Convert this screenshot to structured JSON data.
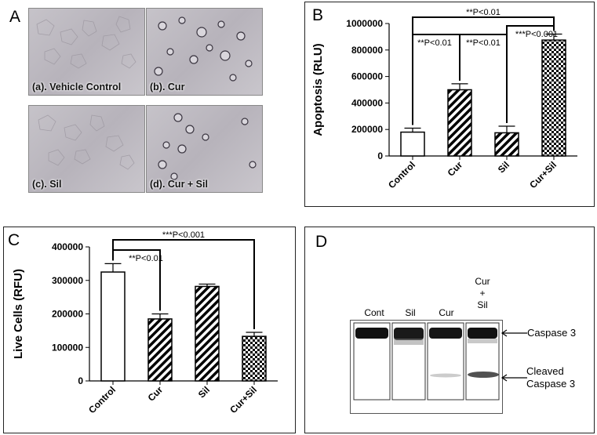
{
  "panel_a": {
    "letter": "A",
    "tiles": [
      {
        "caption": "(a). Vehicle Control"
      },
      {
        "caption": "(b). Cur"
      },
      {
        "caption": "(c). Sil"
      },
      {
        "caption": "(d). Cur + Sil"
      }
    ]
  },
  "panel_b": {
    "letter": "B"
  },
  "panel_c": {
    "letter": "C"
  },
  "panel_d": {
    "letter": "D",
    "lanes": [
      {
        "label": "Cont"
      },
      {
        "label": "Sil"
      },
      {
        "label": "Cur"
      },
      {
        "label": "Cur\n+\nSil"
      }
    ],
    "band_labels": {
      "caspase": "Caspase 3",
      "cleaved_1": "Cleaved",
      "cleaved_2": "Caspase 3"
    }
  },
  "chart_data": [
    {
      "type": "bar",
      "panel": "B",
      "ylabel": "Apoptosis (RLU)",
      "categories": [
        "Control",
        "Cur",
        "Sil",
        "Cur+Sil"
      ],
      "values": [
        180000,
        500000,
        175000,
        875000
      ],
      "errors": [
        30000,
        45000,
        50000,
        45000
      ],
      "patterns": [
        "none",
        "diag",
        "diag",
        "checker"
      ],
      "ylim": [
        0,
        1000000
      ],
      "yticks": [
        "0",
        "200000",
        "400000",
        "600000",
        "800000",
        "1000000"
      ],
      "annotations": [
        {
          "from": 0,
          "to": 1,
          "text": "**P<0.01",
          "level": 1
        },
        {
          "from": 1,
          "to": 2,
          "text": "**P<0.01",
          "level": 1
        },
        {
          "from": 2,
          "to": 3,
          "text": "***P<0.001",
          "level": 2
        },
        {
          "from": 0,
          "to": 3,
          "text": "**P<0.01",
          "level": 3
        }
      ]
    },
    {
      "type": "bar",
      "panel": "C",
      "ylabel": "Live Cells (RFU)",
      "categories": [
        "Control",
        "Cur",
        "Sil",
        "Cur+Sil"
      ],
      "values": [
        325000,
        185000,
        282000,
        133000
      ],
      "errors": [
        25000,
        15000,
        7000,
        12000
      ],
      "patterns": [
        "none",
        "diag",
        "diag",
        "checker"
      ],
      "ylim": [
        0,
        400000
      ],
      "yticks": [
        "0",
        "100000",
        "200000",
        "300000",
        "400000"
      ],
      "annotations": [
        {
          "from": 0,
          "to": 1,
          "text": "**P<0.01",
          "level": 1
        },
        {
          "from": 0,
          "to": 3,
          "text": "***P<0.001",
          "level": 2
        }
      ]
    }
  ]
}
